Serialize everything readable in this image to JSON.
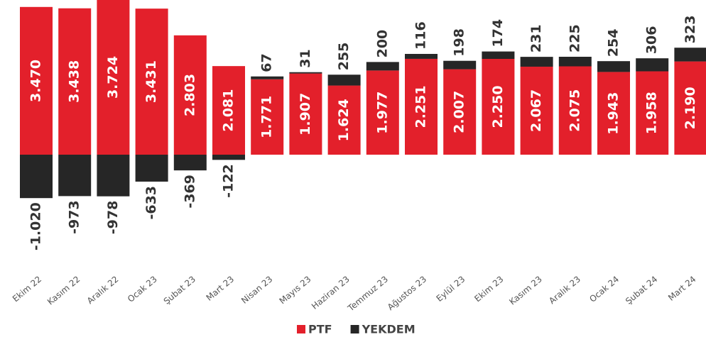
{
  "chart_data": {
    "type": "stacked-bar",
    "categories": [
      "Ekim 22",
      "Kasım 22",
      "Aralık 22",
      "Ocak 23",
      "Şubat 23",
      "Mart 23",
      "Nisan 23",
      "Mayıs 23",
      "Haziran 23",
      "Temmuz 23",
      "Ağustos 23",
      "Eylül 23",
      "Ekim 23",
      "Kasım 23",
      "Aralık 23",
      "Ocak 24",
      "Şubat 24",
      "Mart 24"
    ],
    "series": [
      {
        "name": "PTF",
        "color": "#e3202b",
        "values": [
          3470,
          3438,
          3724,
          3431,
          2803,
          2081,
          1771,
          1907,
          1624,
          1977,
          2251,
          2007,
          2250,
          2067,
          2075,
          1943,
          1958,
          2190
        ],
        "value_labels": [
          "3.470",
          "3.438",
          "3.724",
          "3.431",
          "2.803",
          "2.081",
          "1.771",
          "1.907",
          "1.624",
          "1.977",
          "2.251",
          "2.007",
          "2.250",
          "2.067",
          "2.075",
          "1.943",
          "1.958",
          "2.190"
        ]
      },
      {
        "name": "YEKDEM",
        "color": "#262626",
        "values": [
          -1020,
          -973,
          -978,
          -633,
          -369,
          -122,
          67,
          31,
          255,
          200,
          116,
          198,
          174,
          231,
          225,
          254,
          306,
          323
        ],
        "value_labels": [
          "-1.020",
          "-973",
          "-978",
          "-633",
          "-369",
          "-122",
          "67",
          "31",
          "255",
          "200",
          "116",
          "198",
          "174",
          "231",
          "225",
          "254",
          "306",
          "323"
        ]
      }
    ],
    "legend": "bottom"
  }
}
